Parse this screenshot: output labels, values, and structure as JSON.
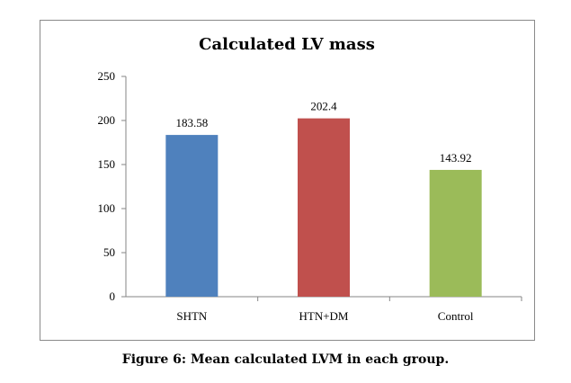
{
  "caption": "Figure 6: Mean calculated LVM in each group.",
  "chart_data": {
    "type": "bar",
    "title": "Calculated LV mass",
    "categories": [
      "SHTN",
      "HTN+DM",
      "Control"
    ],
    "values": [
      183.58,
      202.4,
      143.92
    ],
    "data_labels": [
      "183.58",
      "202.4",
      "143.92"
    ],
    "colors": [
      "#4f81bd",
      "#c0504d",
      "#9bbb59"
    ],
    "ylim": [
      0,
      250
    ],
    "yticks": [
      0,
      50,
      100,
      150,
      200,
      250
    ],
    "xlabel": "",
    "ylabel": "",
    "grid": false,
    "legend": "none"
  }
}
